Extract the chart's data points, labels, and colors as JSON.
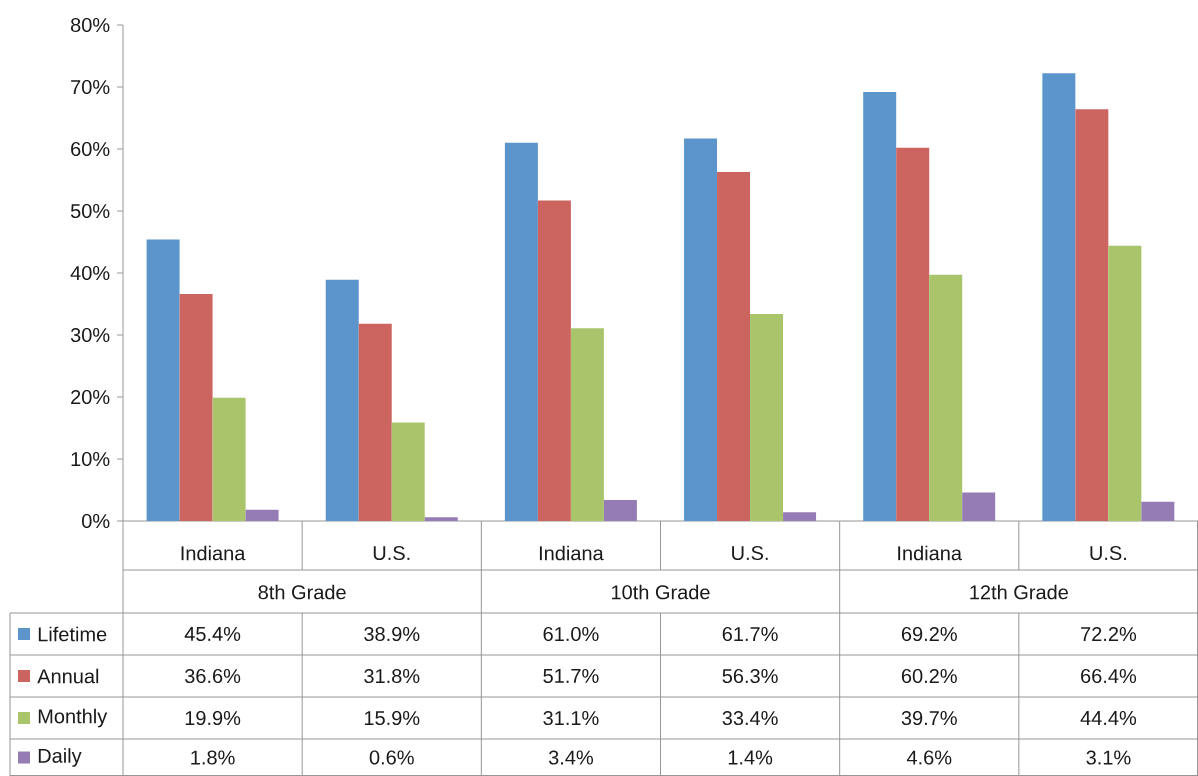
{
  "chart_data": {
    "type": "bar",
    "categories": [
      "Indiana",
      "U.S.",
      "Indiana",
      "U.S.",
      "Indiana",
      "U.S."
    ],
    "annotations": [
      "8th Grade",
      "10th Grade",
      "12th Grade"
    ],
    "series": [
      {
        "name": "Lifetime",
        "color": "#5b95cc",
        "values": [
          45.4,
          38.9,
          61.0,
          61.7,
          69.2,
          72.2
        ],
        "value_labels": [
          "45.4%",
          "38.9%",
          "61.0%",
          "61.7%",
          "69.2%",
          "72.2%"
        ]
      },
      {
        "name": "Annual",
        "color": "#cc6560",
        "values": [
          36.6,
          31.8,
          51.7,
          56.3,
          60.2,
          66.4
        ],
        "value_labels": [
          "36.6%",
          "31.8%",
          "51.7%",
          "56.3%",
          "60.2%",
          "66.4%"
        ]
      },
      {
        "name": "Monthly",
        "color": "#a9c46b",
        "values": [
          19.9,
          15.9,
          31.1,
          33.4,
          39.7,
          44.4
        ],
        "value_labels": [
          "19.9%",
          "15.9%",
          "31.1%",
          "33.4%",
          "39.7%",
          "44.4%"
        ]
      },
      {
        "name": "Daily",
        "color": "#957cb5",
        "values": [
          1.8,
          0.6,
          3.4,
          1.4,
          4.6,
          3.1
        ],
        "value_labels": [
          "1.8%",
          "0.6%",
          "3.4%",
          "1.4%",
          "4.6%",
          "3.1%"
        ]
      }
    ],
    "ylim": [
      0,
      80
    ],
    "yticks": [
      {
        "value": 0,
        "label": "0%"
      },
      {
        "value": 10,
        "label": "10%"
      },
      {
        "value": 20,
        "label": "20%"
      },
      {
        "value": 30,
        "label": "30%"
      },
      {
        "value": 40,
        "label": "40%"
      },
      {
        "value": 50,
        "label": "50%"
      },
      {
        "value": 60,
        "label": "60%"
      },
      {
        "value": 70,
        "label": "70%"
      },
      {
        "value": 80,
        "label": "80%"
      }
    ],
    "legend": "bottom"
  }
}
